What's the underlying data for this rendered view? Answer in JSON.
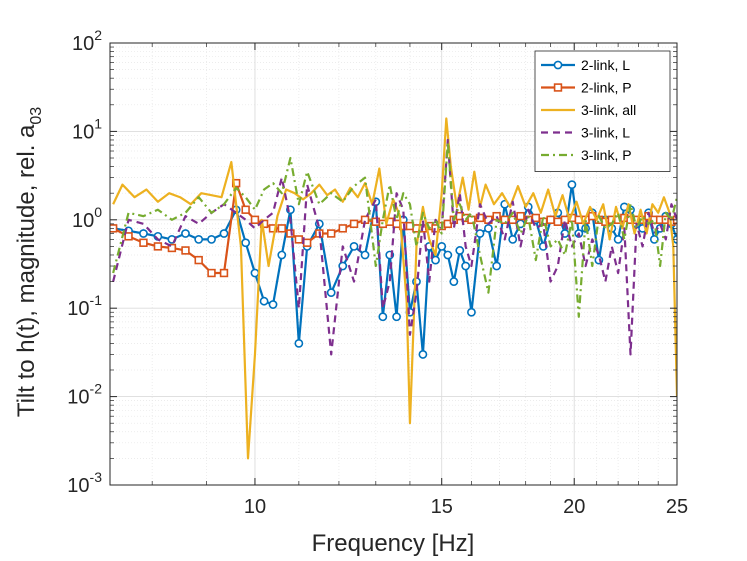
{
  "chart_data": {
    "type": "line",
    "xlabel": "Frequency [Hz]",
    "ylabel_main": "Tilt to h(t), magnitude, rel. a",
    "ylabel_sub": "03",
    "xscale": "log",
    "yscale": "log",
    "xlim": [
      7.3,
      25
    ],
    "ylim": [
      0.001,
      100
    ],
    "xticks": [
      10,
      15,
      20,
      25
    ],
    "xtick_labels": [
      "10",
      "15",
      "20",
      "25"
    ],
    "yticks": [
      {
        "value": 0.001,
        "base": "10",
        "exp": "-3"
      },
      {
        "value": 0.01,
        "base": "10",
        "exp": "-2"
      },
      {
        "value": 0.1,
        "base": "10",
        "exp": "-1"
      },
      {
        "value": 1,
        "base": "10",
        "exp": "0"
      },
      {
        "value": 10,
        "base": "10",
        "exp": "1"
      },
      {
        "value": 100,
        "base": "10",
        "exp": "2"
      }
    ],
    "grid": true,
    "minor_grid": true,
    "legend_position": "top-right",
    "series": [
      {
        "name": "2-link, L",
        "color": "#0072BD",
        "marker": "circle",
        "dash": "solid",
        "x": [
          7.35,
          7.6,
          7.85,
          8.1,
          8.35,
          8.6,
          8.85,
          9.1,
          9.35,
          9.6,
          9.8,
          10.0,
          10.2,
          10.4,
          10.6,
          10.8,
          11.0,
          11.2,
          11.5,
          11.8,
          12.1,
          12.4,
          12.7,
          13.0,
          13.2,
          13.4,
          13.6,
          13.8,
          14.0,
          14.2,
          14.4,
          14.6,
          14.8,
          15.0,
          15.2,
          15.4,
          15.6,
          15.8,
          16.0,
          16.3,
          16.6,
          16.9,
          17.2,
          17.5,
          17.8,
          18.1,
          18.4,
          18.7,
          19.0,
          19.3,
          19.6,
          19.9,
          20.2,
          20.5,
          20.8,
          21.1,
          21.4,
          21.7,
          22.0,
          22.3,
          22.6,
          22.9,
          23.2,
          23.5,
          23.8,
          24.1,
          24.4,
          24.7,
          25.0
        ],
        "y": [
          0.8,
          0.75,
          0.7,
          0.65,
          0.6,
          0.7,
          0.6,
          0.6,
          0.7,
          1.3,
          0.55,
          0.25,
          0.12,
          0.11,
          0.4,
          1.3,
          0.04,
          0.5,
          0.9,
          0.15,
          0.3,
          0.5,
          0.4,
          1.6,
          0.08,
          0.4,
          0.08,
          1.0,
          0.09,
          0.2,
          0.03,
          0.5,
          0.35,
          0.5,
          0.4,
          0.2,
          0.45,
          0.3,
          0.09,
          0.7,
          0.8,
          0.3,
          1.5,
          0.6,
          0.9,
          1.4,
          1.0,
          0.5,
          1.0,
          1.2,
          0.7,
          2.5,
          0.7,
          0.8,
          1.2,
          0.35,
          1.0,
          0.8,
          0.6,
          1.4,
          1.3,
          0.9,
          0.8,
          1.2,
          0.6,
          0.8,
          1.1,
          0.9,
          0.6
        ]
      },
      {
        "name": "2-link, P",
        "color": "#D95319",
        "marker": "square",
        "dash": "solid",
        "x": [
          7.35,
          7.6,
          7.85,
          8.1,
          8.35,
          8.6,
          8.85,
          9.1,
          9.35,
          9.6,
          9.8,
          10.0,
          10.2,
          10.4,
          10.6,
          10.8,
          11.0,
          11.2,
          11.5,
          11.8,
          12.1,
          12.4,
          12.7,
          13.0,
          13.2,
          13.4,
          13.6,
          13.8,
          14.0,
          14.2,
          14.4,
          14.6,
          14.8,
          15.0,
          15.2,
          15.4,
          15.6,
          15.8,
          16.0,
          16.3,
          16.6,
          16.9,
          17.2,
          17.5,
          17.8,
          18.1,
          18.4,
          18.7,
          19.0,
          19.3,
          19.6,
          19.9,
          20.2,
          20.5,
          20.8,
          21.1,
          21.4,
          21.7,
          22.0,
          22.3,
          22.6,
          22.9,
          23.2,
          23.5,
          23.8,
          24.1,
          24.4,
          24.7,
          25.0
        ],
        "y": [
          0.8,
          0.65,
          0.55,
          0.5,
          0.48,
          0.45,
          0.35,
          0.25,
          0.25,
          2.6,
          1.3,
          1.0,
          0.9,
          0.8,
          0.8,
          0.7,
          0.6,
          0.55,
          0.7,
          0.7,
          0.8,
          0.9,
          1.0,
          0.95,
          0.9,
          0.95,
          0.9,
          0.85,
          0.85,
          0.8,
          0.8,
          0.85,
          0.8,
          0.85,
          0.9,
          1.0,
          1.1,
          1.05,
          1.0,
          1.05,
          1.0,
          1.1,
          1.0,
          1.0,
          1.1,
          1.0,
          1.05,
          0.95,
          1.0,
          0.95,
          1.0,
          1.05,
          1.0,
          1.0,
          1.1,
          1.0,
          0.95,
          1.0,
          1.0,
          1.05,
          1.0,
          1.0,
          1.0,
          1.1,
          1.0,
          1.0,
          1.0,
          0.95,
          1.0
        ]
      },
      {
        "name": "3-link, all",
        "color": "#EDB120",
        "marker": "none",
        "dash": "solid",
        "x": [
          7.35,
          7.5,
          7.7,
          7.9,
          8.1,
          8.3,
          8.5,
          8.7,
          8.9,
          9.1,
          9.3,
          9.5,
          9.7,
          9.85,
          10.0,
          10.15,
          10.3,
          10.5,
          10.7,
          10.9,
          11.1,
          11.3,
          11.5,
          11.7,
          11.9,
          12.1,
          12.3,
          12.5,
          12.7,
          12.9,
          13.1,
          13.3,
          13.5,
          13.7,
          13.9,
          14.0,
          14.2,
          14.4,
          14.6,
          14.8,
          15.0,
          15.15,
          15.3,
          15.5,
          15.7,
          15.9,
          16.1,
          16.3,
          16.5,
          16.8,
          17.1,
          17.4,
          17.7,
          18.0,
          18.3,
          18.6,
          18.9,
          19.2,
          19.5,
          19.8,
          20.1,
          20.4,
          20.7,
          21.0,
          21.3,
          21.6,
          21.9,
          22.2,
          22.5,
          22.8,
          23.1,
          23.4,
          23.7,
          24.0,
          24.3,
          24.6,
          24.8,
          25.0
        ],
        "y": [
          1.5,
          2.5,
          1.8,
          2.2,
          1.6,
          2.0,
          1.8,
          1.5,
          2.0,
          1.9,
          1.8,
          4.5,
          0.5,
          0.002,
          0.03,
          1.0,
          0.3,
          1.1,
          2.2,
          2.0,
          1.7,
          2.0,
          2.5,
          1.9,
          2.2,
          1.6,
          2.3,
          1.8,
          2.6,
          1.5,
          3.8,
          0.9,
          1.7,
          1.1,
          0.12,
          0.005,
          0.5,
          1.4,
          0.6,
          0.4,
          2.0,
          14.0,
          4.0,
          1.4,
          3.0,
          1.3,
          3.5,
          1.4,
          2.5,
          1.5,
          2.0,
          1.4,
          2.4,
          1.4,
          2.0,
          1.2,
          2.2,
          1.1,
          1.9,
          1.0,
          1.6,
          0.9,
          1.4,
          1.0,
          1.5,
          0.6,
          1.4,
          0.8,
          1.5,
          0.7,
          1.3,
          0.7,
          1.5,
          1.2,
          1.8,
          1.2,
          0.5,
          0.01
        ]
      },
      {
        "name": "3-link, L",
        "color": "#7E2F8E",
        "marker": "none",
        "dash": "dash",
        "x": [
          7.35,
          7.6,
          7.85,
          8.1,
          8.35,
          8.6,
          8.85,
          9.1,
          9.35,
          9.6,
          9.8,
          10.0,
          10.2,
          10.4,
          10.6,
          10.8,
          11.0,
          11.2,
          11.5,
          11.8,
          12.1,
          12.4,
          12.7,
          13.0,
          13.2,
          13.4,
          13.6,
          13.8,
          14.0,
          14.2,
          14.4,
          14.6,
          14.8,
          15.0,
          15.2,
          15.4,
          15.6,
          15.8,
          16.0,
          16.3,
          16.6,
          16.9,
          17.2,
          17.5,
          17.8,
          18.1,
          18.4,
          18.7,
          19.0,
          19.3,
          19.6,
          19.9,
          20.2,
          20.5,
          20.8,
          21.1,
          21.4,
          21.7,
          22.0,
          22.3,
          22.6,
          22.9,
          23.2,
          23.5,
          23.8,
          24.1,
          24.4,
          24.7,
          25.0
        ],
        "y": [
          0.2,
          1.0,
          0.9,
          0.6,
          0.5,
          1.1,
          0.9,
          1.2,
          1.5,
          1.2,
          1.0,
          0.8,
          1.0,
          1.2,
          3.0,
          1.0,
          0.1,
          2.5,
          0.8,
          0.03,
          0.5,
          0.2,
          1.0,
          1.7,
          0.1,
          0.2,
          2.0,
          1.3,
          0.05,
          0.15,
          1.0,
          0.2,
          1.0,
          0.8,
          8.0,
          0.8,
          2.0,
          0.5,
          0.3,
          1.5,
          0.9,
          1.1,
          0.6,
          1.6,
          0.5,
          1.3,
          0.8,
          0.9,
          0.2,
          0.3,
          1.0,
          0.5,
          0.7,
          0.3,
          0.6,
          0.4,
          0.2,
          0.5,
          0.25,
          0.8,
          0.03,
          0.9,
          0.5,
          1.2,
          0.7,
          0.9,
          0.6,
          1.5,
          1.0
        ]
      },
      {
        "name": "3-link, P",
        "color": "#77AC30",
        "marker": "none",
        "dash": "dashdot",
        "x": [
          7.35,
          7.6,
          7.85,
          8.1,
          8.35,
          8.6,
          8.85,
          9.1,
          9.35,
          9.6,
          9.8,
          10.0,
          10.2,
          10.4,
          10.6,
          10.8,
          11.0,
          11.2,
          11.5,
          11.8,
          12.1,
          12.4,
          12.7,
          13.0,
          13.2,
          13.4,
          13.6,
          13.8,
          14.0,
          14.2,
          14.4,
          14.6,
          14.8,
          15.0,
          15.2,
          15.4,
          15.6,
          15.8,
          16.0,
          16.3,
          16.6,
          16.9,
          17.2,
          17.5,
          17.8,
          18.1,
          18.4,
          18.7,
          19.0,
          19.3,
          19.6,
          19.9,
          20.2,
          20.5,
          20.8,
          21.1,
          21.4,
          21.7,
          22.0,
          22.3,
          22.6,
          22.9,
          23.2,
          23.5,
          23.8,
          24.1,
          24.4,
          24.7,
          25.0
        ],
        "y": [
          0.25,
          1.2,
          1.1,
          1.3,
          1.0,
          1.2,
          1.8,
          1.2,
          1.5,
          2.3,
          1.8,
          1.3,
          2.2,
          2.6,
          2.0,
          5.0,
          1.5,
          3.5,
          1.5,
          2.0,
          1.6,
          2.4,
          3.0,
          0.3,
          1.0,
          2.5,
          1.0,
          2.0,
          1.5,
          0.5,
          1.2,
          0.8,
          1.0,
          0.7,
          7.5,
          1.0,
          1.5,
          1.0,
          1.2,
          0.4,
          0.15,
          1.0,
          0.9,
          1.2,
          0.7,
          1.1,
          0.35,
          1.1,
          0.5,
          0.6,
          0.4,
          1.0,
          0.08,
          1.0,
          0.3,
          1.1,
          0.8,
          0.9,
          1.2,
          0.6,
          1.5,
          0.8,
          1.1,
          0.9,
          1.0,
          0.3,
          1.2,
          1.0,
          1.8
        ]
      }
    ]
  }
}
